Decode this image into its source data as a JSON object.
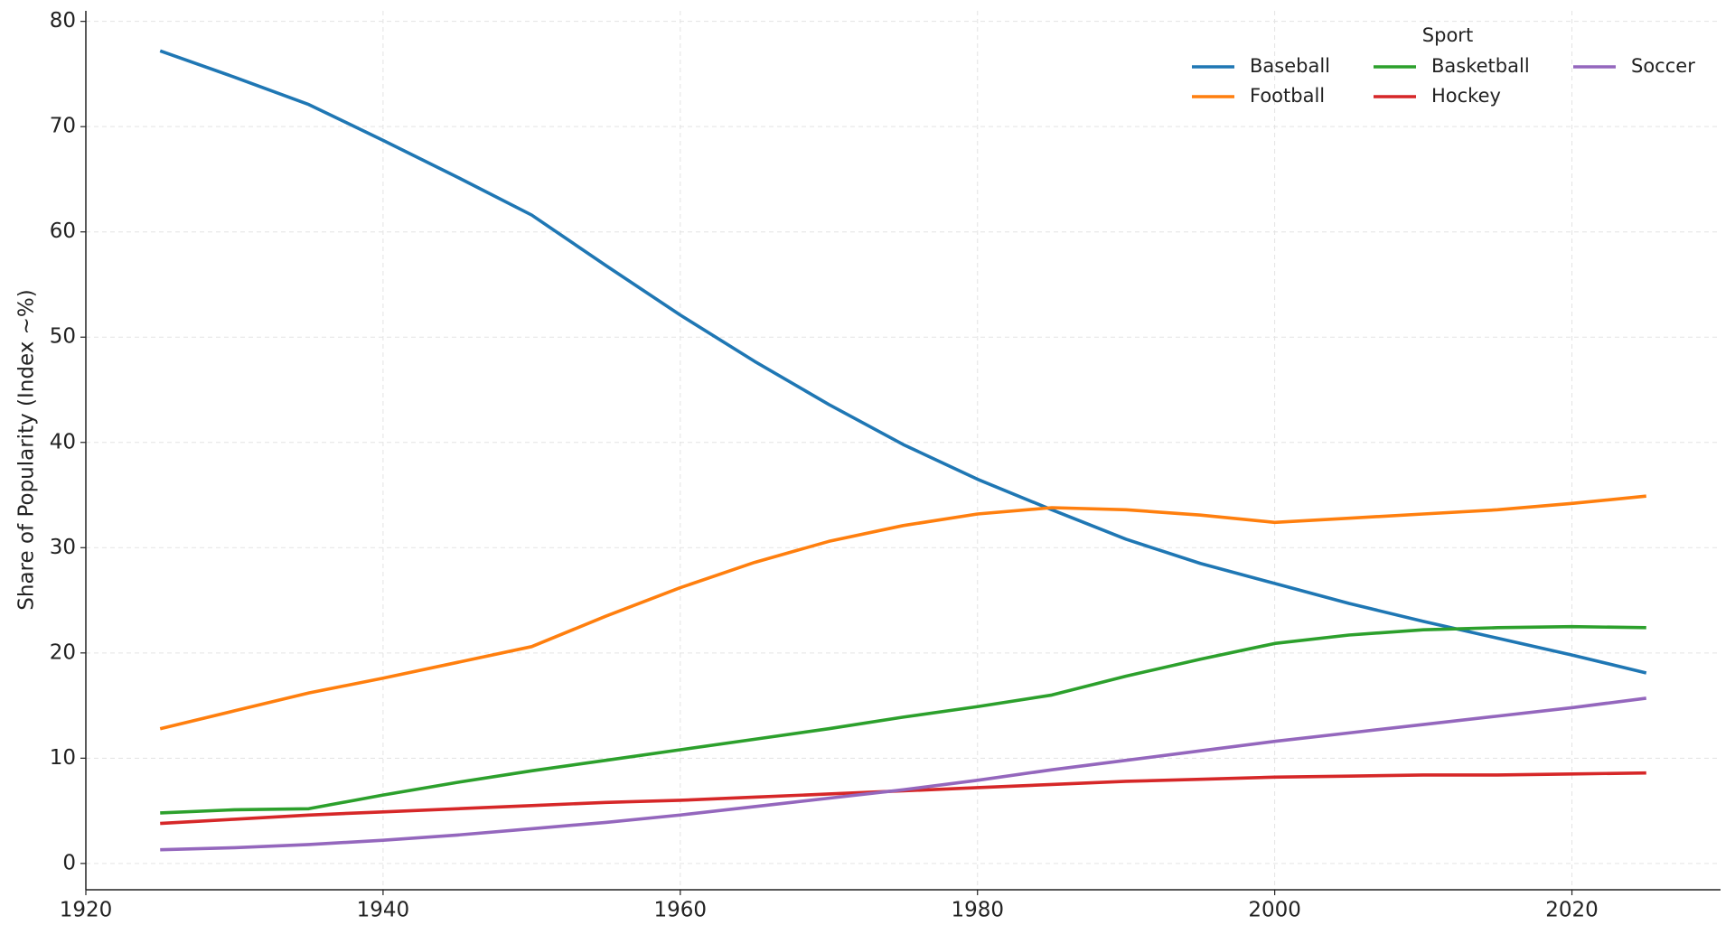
{
  "chart_data": {
    "type": "line",
    "ylabel": "Share of Popularity (Index ~%)",
    "legend_title": "Sport",
    "legend_position": "upper right",
    "grid": true,
    "x": [
      1925,
      1930,
      1935,
      1940,
      1945,
      1950,
      1955,
      1960,
      1965,
      1970,
      1975,
      1980,
      1985,
      1990,
      1995,
      2000,
      2005,
      2010,
      2015,
      2020,
      2025
    ],
    "series": [
      {
        "name": "Baseball",
        "color": "#1f77b4",
        "values": [
          77.2,
          74.7,
          72.1,
          68.7,
          65.2,
          61.6,
          56.8,
          52.1,
          47.7,
          43.6,
          39.8,
          36.5,
          33.6,
          30.8,
          28.5,
          26.6,
          24.7,
          23.0,
          21.4,
          19.8,
          18.1
        ]
      },
      {
        "name": "Football",
        "color": "#ff7f0e",
        "values": [
          12.8,
          14.5,
          16.2,
          17.6,
          19.1,
          20.6,
          23.5,
          26.2,
          28.6,
          30.6,
          32.1,
          33.2,
          33.8,
          33.6,
          33.1,
          32.4,
          32.8,
          33.2,
          33.6,
          34.2,
          34.9
        ]
      },
      {
        "name": "Basketball",
        "color": "#2ca02c",
        "values": [
          4.8,
          5.1,
          5.2,
          6.5,
          7.7,
          8.8,
          9.8,
          10.8,
          11.8,
          12.8,
          13.9,
          14.9,
          16.0,
          17.8,
          19.4,
          20.9,
          21.7,
          22.2,
          22.4,
          22.5,
          22.4
        ]
      },
      {
        "name": "Hockey",
        "color": "#d62728",
        "values": [
          3.8,
          4.2,
          4.6,
          4.9,
          5.2,
          5.5,
          5.8,
          6.0,
          6.3,
          6.6,
          6.9,
          7.2,
          7.5,
          7.8,
          8.0,
          8.2,
          8.3,
          8.4,
          8.4,
          8.5,
          8.6
        ]
      },
      {
        "name": "Soccer",
        "color": "#9467bd",
        "values": [
          1.3,
          1.5,
          1.8,
          2.2,
          2.7,
          3.3,
          3.9,
          4.6,
          5.4,
          6.2,
          7.0,
          7.9,
          8.9,
          9.8,
          10.7,
          11.6,
          12.4,
          13.2,
          14.0,
          14.8,
          15.7
        ]
      }
    ],
    "xlim": [
      1920,
      2030
    ],
    "xticks": [
      1920,
      1940,
      1960,
      1980,
      2000,
      2020
    ],
    "ylim": [
      -2.5,
      81
    ],
    "yticks": [
      0,
      10,
      20,
      30,
      40,
      50,
      60,
      70,
      80
    ]
  }
}
